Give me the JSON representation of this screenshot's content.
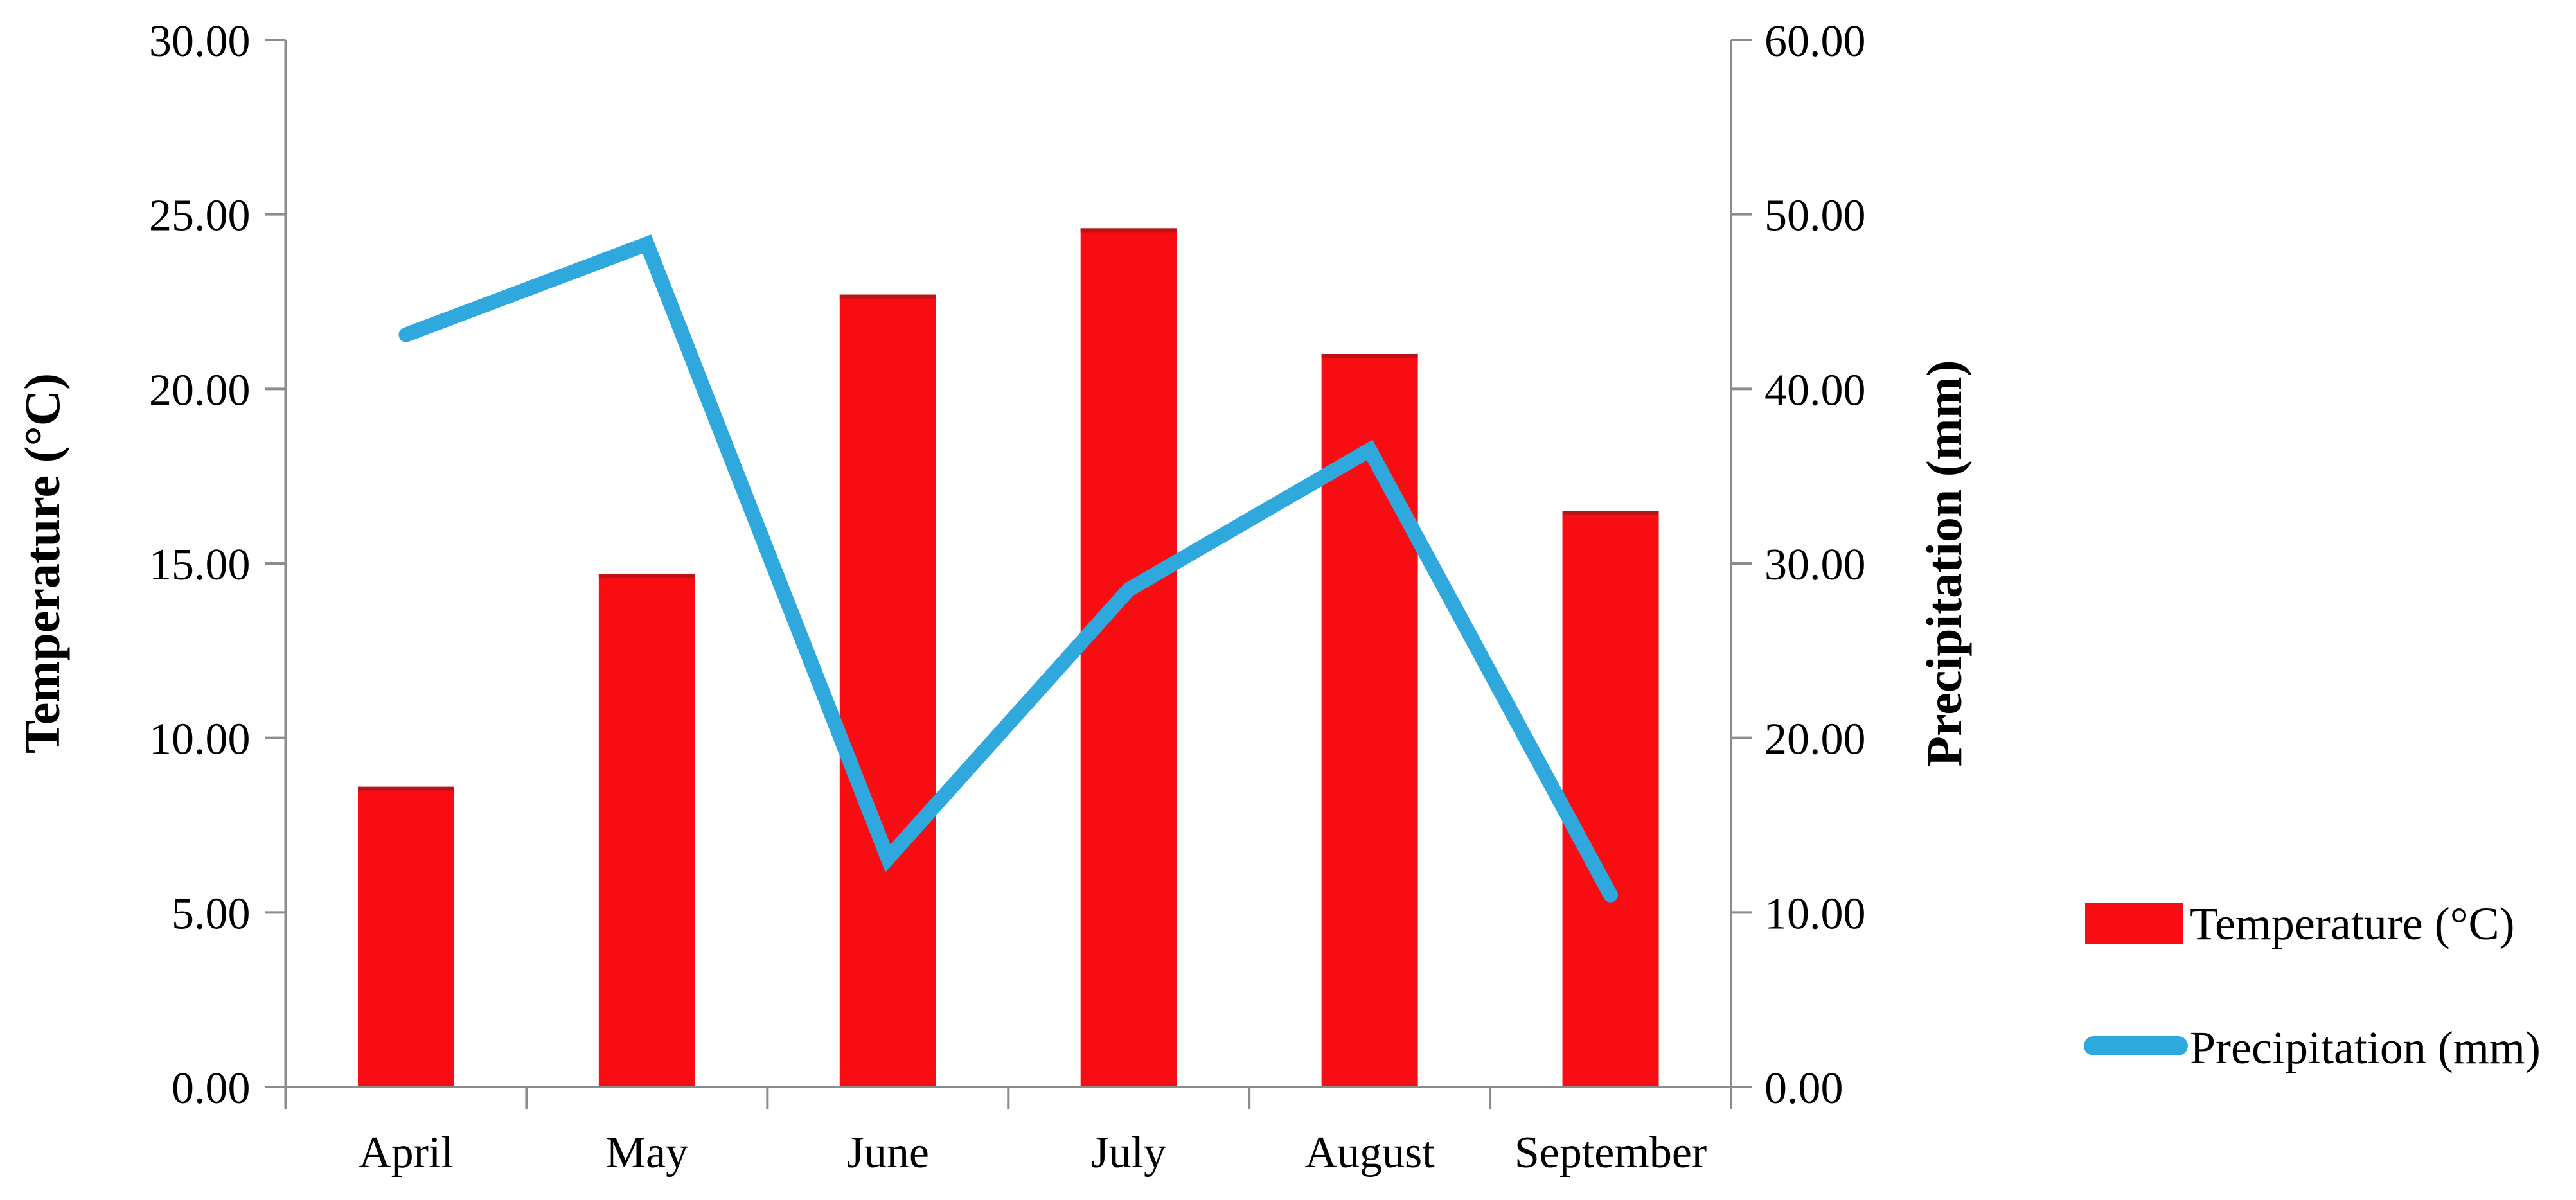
{
  "chart_data": {
    "type": "bar",
    "subtype": "combo-bar-line-dual-axis",
    "title": "",
    "categories": [
      "April",
      "May",
      "June",
      "July",
      "August",
      "September"
    ],
    "series": [
      {
        "name": "Temperature (°C)",
        "type": "bar",
        "axis": "left",
        "values": [
          8.6,
          14.7,
          22.7,
          24.6,
          21.0,
          16.5
        ]
      },
      {
        "name": "Precipitation (mm)",
        "type": "line",
        "axis": "right",
        "values": [
          43.1,
          48.3,
          13.1,
          28.5,
          36.5,
          11.0
        ]
      }
    ],
    "left_axis": {
      "title": "Temperature (°C)",
      "min": 0,
      "max": 30,
      "tick_step": 5,
      "tick_labels": [
        "0.00",
        "5.00",
        "10.00",
        "15.00",
        "20.00",
        "25.00",
        "30.00"
      ]
    },
    "right_axis": {
      "title": "Precipitation (mm)",
      "min": 0,
      "max": 60,
      "tick_step": 10,
      "tick_labels": [
        "0.00",
        "10.00",
        "20.00",
        "30.00",
        "40.00",
        "50.00",
        "60.00"
      ]
    },
    "legend": {
      "position": "right",
      "items": [
        {
          "label": "Temperature (°C)",
          "swatch": "bar-swatch"
        },
        {
          "label": "Precipitation (mm)",
          "swatch": "line-swatch"
        }
      ]
    },
    "grid": "off"
  },
  "colors": {
    "bar": "#f90d12",
    "bar_top_edge": "#bb1418",
    "line": "#2fa8dd",
    "axis": "#8c8c8c",
    "text": "#000000",
    "background": "#ffffff"
  }
}
